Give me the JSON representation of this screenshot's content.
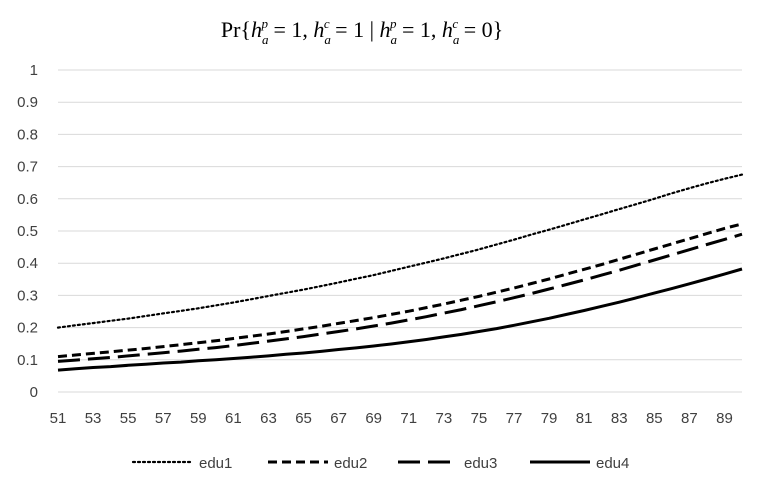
{
  "chart_data": {
    "type": "line",
    "title": "Pr{h_a^p = 1, h_a^c = 1 | h_a^p = 1, h_a^c = 0}",
    "xlabel": "",
    "ylabel": "",
    "x_tick_labels": [
      "51",
      "53",
      "55",
      "57",
      "59",
      "61",
      "63",
      "65",
      "67",
      "69",
      "71",
      "73",
      "75",
      "77",
      "79",
      "81",
      "83",
      "85",
      "87",
      "89"
    ],
    "y_tick_labels": [
      "0",
      "0.1",
      "0.2",
      "0.3",
      "0.4",
      "0.5",
      "0.6",
      "0.7",
      "0.8",
      "0.9",
      "1"
    ],
    "xlim": [
      51,
      90
    ],
    "ylim": [
      0,
      1
    ],
    "grid": true,
    "legend_position": "bottom",
    "x": [
      51,
      52,
      53,
      54,
      55,
      56,
      57,
      58,
      59,
      60,
      61,
      62,
      63,
      64,
      65,
      66,
      67,
      68,
      69,
      70,
      71,
      72,
      73,
      74,
      75,
      76,
      77,
      78,
      79,
      80,
      81,
      82,
      83,
      84,
      85,
      86,
      87,
      88,
      89,
      90
    ],
    "series": [
      {
        "name": "edu1",
        "style": "dotted",
        "color": "#000000",
        "values": [
          0.2,
          0.207,
          0.214,
          0.221,
          0.228,
          0.236,
          0.244,
          0.252,
          0.26,
          0.269,
          0.278,
          0.288,
          0.298,
          0.308,
          0.318,
          0.329,
          0.34,
          0.352,
          0.363,
          0.376,
          0.389,
          0.402,
          0.415,
          0.429,
          0.443,
          0.458,
          0.473,
          0.489,
          0.504,
          0.52,
          0.536,
          0.552,
          0.568,
          0.584,
          0.6,
          0.617,
          0.633,
          0.648,
          0.662,
          0.675
        ]
      },
      {
        "name": "edu2",
        "style": "dashed-short",
        "color": "#000000",
        "values": [
          0.11,
          0.115,
          0.12,
          0.125,
          0.13,
          0.135,
          0.141,
          0.147,
          0.153,
          0.159,
          0.166,
          0.173,
          0.18,
          0.188,
          0.196,
          0.204,
          0.213,
          0.222,
          0.231,
          0.241,
          0.251,
          0.262,
          0.273,
          0.285,
          0.297,
          0.31,
          0.323,
          0.337,
          0.351,
          0.366,
          0.381,
          0.396,
          0.412,
          0.428,
          0.444,
          0.46,
          0.476,
          0.492,
          0.508,
          0.522
        ]
      },
      {
        "name": "edu3",
        "style": "dashed-long",
        "color": "#000000",
        "values": [
          0.095,
          0.099,
          0.103,
          0.107,
          0.112,
          0.117,
          0.122,
          0.127,
          0.133,
          0.138,
          0.144,
          0.151,
          0.158,
          0.165,
          0.172,
          0.18,
          0.188,
          0.196,
          0.205,
          0.214,
          0.224,
          0.234,
          0.245,
          0.256,
          0.268,
          0.28,
          0.293,
          0.306,
          0.32,
          0.334,
          0.348,
          0.363,
          0.378,
          0.394,
          0.41,
          0.426,
          0.442,
          0.458,
          0.474,
          0.49
        ]
      },
      {
        "name": "edu4",
        "style": "solid",
        "color": "#000000",
        "values": [
          0.068,
          0.072,
          0.076,
          0.079,
          0.083,
          0.086,
          0.09,
          0.093,
          0.097,
          0.1,
          0.104,
          0.108,
          0.112,
          0.117,
          0.121,
          0.126,
          0.132,
          0.137,
          0.143,
          0.149,
          0.156,
          0.163,
          0.171,
          0.179,
          0.188,
          0.197,
          0.207,
          0.218,
          0.229,
          0.241,
          0.253,
          0.266,
          0.279,
          0.293,
          0.307,
          0.321,
          0.336,
          0.351,
          0.366,
          0.382
        ]
      }
    ]
  }
}
